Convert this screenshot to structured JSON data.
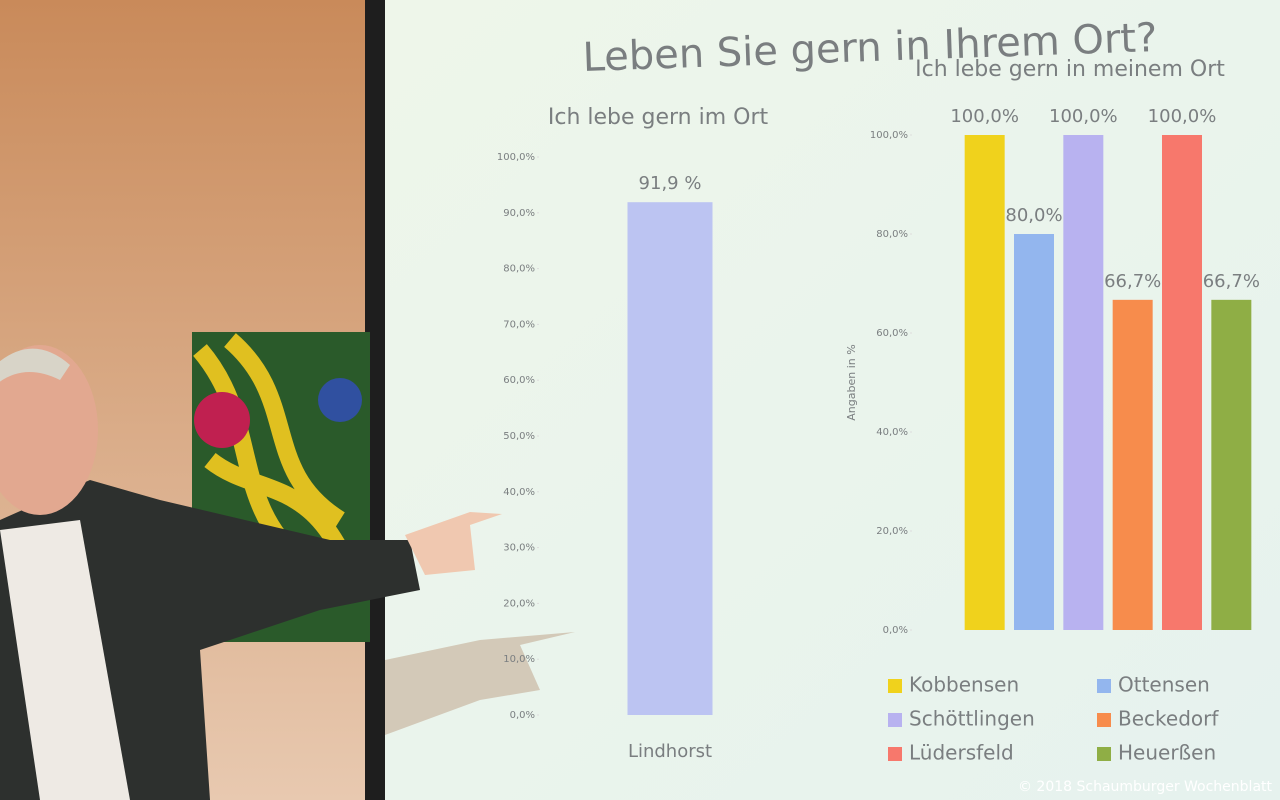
{
  "title": "Leben Sie gern in Ihrem Ort?",
  "chart_data": [
    {
      "type": "bar",
      "title": "Ich lebe gern im Ort",
      "categories": [
        "Lindhorst"
      ],
      "series": [
        {
          "color": "#bcc4f2",
          "values": [
            91.9
          ],
          "value_labels": [
            "91,9 %"
          ]
        }
      ],
      "ylim": [
        0,
        100
      ],
      "yticks": [
        {
          "value": 0,
          "label": "0,0%"
        },
        {
          "value": 10,
          "label": "10,0%"
        },
        {
          "value": 20,
          "label": "20,0%"
        },
        {
          "value": 30,
          "label": "30,0%"
        },
        {
          "value": 40,
          "label": "40,0%"
        },
        {
          "value": 50,
          "label": "50,0%"
        },
        {
          "value": 60,
          "label": "60,0%"
        },
        {
          "value": 70,
          "label": "70,0%"
        },
        {
          "value": 80,
          "label": "80,0%"
        },
        {
          "value": 90,
          "label": "90,0%"
        },
        {
          "value": 100,
          "label": "100,0%"
        }
      ]
    },
    {
      "type": "bar",
      "title": "Ich lebe gern in meinem Ort",
      "ylabel": "Angaben in %",
      "series": [
        {
          "name": "Kobbensen",
          "color": "#f0d21c",
          "values": [
            100
          ],
          "value_labels": [
            "100,0%"
          ]
        },
        {
          "name": "Ottensen",
          "color": "#93b6ee",
          "values": [
            80
          ],
          "value_labels": [
            "80,0%"
          ]
        },
        {
          "name": "Schöttlingen",
          "color": "#b8b2f0",
          "values": [
            100
          ],
          "value_labels": [
            "100,0%"
          ]
        },
        {
          "name": "Beckedorf",
          "color": "#f78c4c",
          "values": [
            66.7
          ],
          "value_labels": [
            "66,7%"
          ]
        },
        {
          "name": "Lüdersfeld",
          "color": "#f7786c",
          "values": [
            100
          ],
          "value_labels": [
            "100,0%"
          ]
        },
        {
          "name": "Heuerßen",
          "color": "#8fae45",
          "values": [
            66.7
          ],
          "value_labels": [
            "66,7%"
          ]
        }
      ],
      "ylim": [
        0,
        100
      ],
      "yticks": [
        {
          "value": 0,
          "label": "0,0%"
        },
        {
          "value": 20,
          "label": "20,0%"
        },
        {
          "value": 40,
          "label": "40,0%"
        },
        {
          "value": 60,
          "label": "60,0%"
        },
        {
          "value": 80,
          "label": "80,0%"
        },
        {
          "value": 100,
          "label": "100,0%"
        }
      ],
      "legend": "bottom"
    }
  ],
  "copyright": "© 2018 Schaumburger Wochenblatt"
}
